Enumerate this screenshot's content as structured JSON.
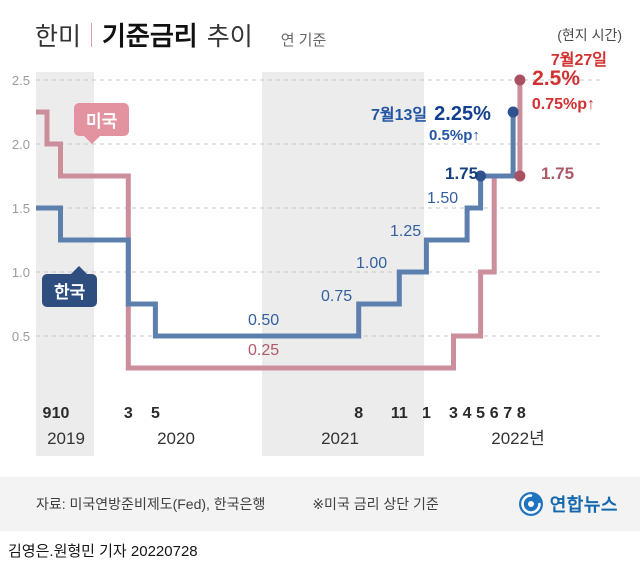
{
  "header": {
    "title_prefix": "한미",
    "title_main": "기준금리",
    "title_suffix": "추이",
    "subtitle": "연 기준"
  },
  "series_labels": {
    "us": "미국",
    "kr": "한국"
  },
  "annotations": {
    "local_time": "(현지 시간)",
    "us_date": "7월27일",
    "us_rate": "2.5%",
    "us_change": "0.75%p↑",
    "us_prev": "1.75",
    "kr_date": "7월13일",
    "kr_rate": "2.25%",
    "kr_change": "0.5%p↑",
    "kr_prev": "1.75",
    "step_150": "1.50",
    "step_125": "1.25",
    "step_100": "1.00",
    "step_075": "0.75",
    "step_050": "0.50",
    "step_025": "0.25"
  },
  "footer": {
    "source": "자료: 미국연방준비제도(Fed), 한국은행",
    "note": "※미국 금리 상단 기준",
    "agency": "연합뉴스"
  },
  "byline": "김영은.원형민 기자 20220728",
  "chart_data": {
    "type": "line",
    "title": "한미 기준금리 추이",
    "subtitle": "연 기준, 단위 %",
    "x_unit": "months since 2019-09",
    "ylim": [
      0,
      2.75
    ],
    "grid": "dashed horizontal",
    "y_ticks": [
      "2.5",
      "2.0",
      "1.5",
      "1.0",
      "0.5"
    ],
    "y_tick_values": [
      2.5,
      2.0,
      1.5,
      1.0,
      0.5
    ],
    "x_ticks": [
      {
        "label": "9",
        "m": 0
      },
      {
        "label": "10",
        "m": 1
      },
      {
        "label": "3",
        "m": 6
      },
      {
        "label": "5",
        "m": 8
      },
      {
        "label": "8",
        "m": 23
      },
      {
        "label": "11",
        "m": 26
      },
      {
        "label": "1",
        "m": 28
      },
      {
        "label": "3",
        "m": 30
      },
      {
        "label": "4",
        "m": 31
      },
      {
        "label": "5",
        "m": 32
      },
      {
        "label": "6",
        "m": 33
      },
      {
        "label": "7",
        "m": 34
      },
      {
        "label": "8",
        "m": 35
      }
    ],
    "year_labels": [
      {
        "label": "2019"
      },
      {
        "label": "2020"
      },
      {
        "label": "2021"
      },
      {
        "label": "2022년"
      }
    ],
    "series": [
      {
        "name": "미국",
        "color": "#cb8e9a",
        "dot": "#a95062",
        "start": 2.25,
        "steps": [
          [
            0,
            2.0
          ],
          [
            1,
            1.75
          ],
          [
            6,
            0.25
          ],
          [
            30,
            0.5
          ],
          [
            32,
            1.0
          ],
          [
            33,
            1.75
          ],
          [
            34.9,
            2.5
          ]
        ]
      },
      {
        "name": "한국",
        "color": "#5d7fae",
        "dot": "#2d528f",
        "start": 1.5,
        "steps": [
          [
            1,
            1.25
          ],
          [
            6,
            0.75
          ],
          [
            8,
            0.5
          ],
          [
            23,
            0.75
          ],
          [
            26,
            1.0
          ],
          [
            28,
            1.25
          ],
          [
            31,
            1.5
          ],
          [
            32,
            1.75
          ],
          [
            34.4,
            2.25
          ]
        ]
      }
    ],
    "markers": [
      {
        "s": 0,
        "m": 34.9,
        "r": 1.75
      },
      {
        "s": 0,
        "m": 34.9,
        "r": 2.5
      },
      {
        "s": 1,
        "m": 32,
        "r": 1.75
      },
      {
        "s": 1,
        "m": 34.4,
        "r": 2.25
      }
    ]
  }
}
